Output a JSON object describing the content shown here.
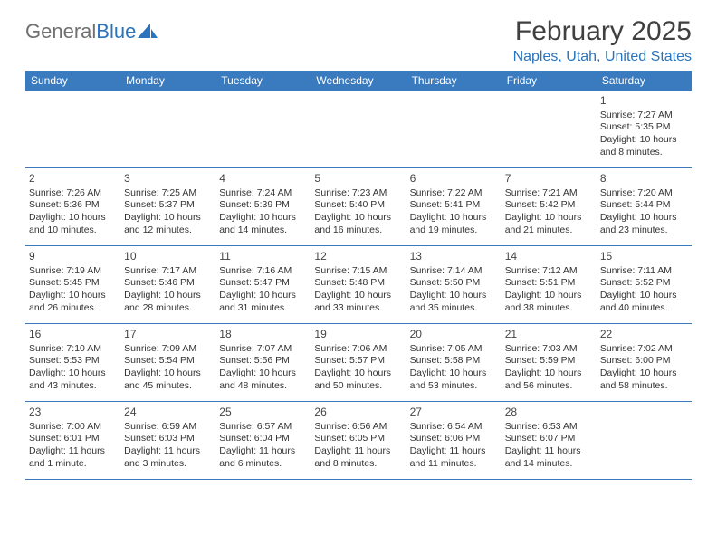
{
  "brand": {
    "part1": "General",
    "part2": "Blue"
  },
  "title": "February 2025",
  "location": "Naples, Utah, United States",
  "colors": {
    "header_bg": "#3a7bbf",
    "header_text": "#ffffff",
    "accent": "#2a74bd",
    "text": "#333333",
    "border": "#3a7bbf",
    "logo_gray": "#707070"
  },
  "weekdays": [
    "Sunday",
    "Monday",
    "Tuesday",
    "Wednesday",
    "Thursday",
    "Friday",
    "Saturday"
  ],
  "first_weekday_index": 6,
  "days": [
    {
      "n": 1,
      "sunrise": "7:27 AM",
      "sunset": "5:35 PM",
      "daylight": "10 hours and 8 minutes."
    },
    {
      "n": 2,
      "sunrise": "7:26 AM",
      "sunset": "5:36 PM",
      "daylight": "10 hours and 10 minutes."
    },
    {
      "n": 3,
      "sunrise": "7:25 AM",
      "sunset": "5:37 PM",
      "daylight": "10 hours and 12 minutes."
    },
    {
      "n": 4,
      "sunrise": "7:24 AM",
      "sunset": "5:39 PM",
      "daylight": "10 hours and 14 minutes."
    },
    {
      "n": 5,
      "sunrise": "7:23 AM",
      "sunset": "5:40 PM",
      "daylight": "10 hours and 16 minutes."
    },
    {
      "n": 6,
      "sunrise": "7:22 AM",
      "sunset": "5:41 PM",
      "daylight": "10 hours and 19 minutes."
    },
    {
      "n": 7,
      "sunrise": "7:21 AM",
      "sunset": "5:42 PM",
      "daylight": "10 hours and 21 minutes."
    },
    {
      "n": 8,
      "sunrise": "7:20 AM",
      "sunset": "5:44 PM",
      "daylight": "10 hours and 23 minutes."
    },
    {
      "n": 9,
      "sunrise": "7:19 AM",
      "sunset": "5:45 PM",
      "daylight": "10 hours and 26 minutes."
    },
    {
      "n": 10,
      "sunrise": "7:17 AM",
      "sunset": "5:46 PM",
      "daylight": "10 hours and 28 minutes."
    },
    {
      "n": 11,
      "sunrise": "7:16 AM",
      "sunset": "5:47 PM",
      "daylight": "10 hours and 31 minutes."
    },
    {
      "n": 12,
      "sunrise": "7:15 AM",
      "sunset": "5:48 PM",
      "daylight": "10 hours and 33 minutes."
    },
    {
      "n": 13,
      "sunrise": "7:14 AM",
      "sunset": "5:50 PM",
      "daylight": "10 hours and 35 minutes."
    },
    {
      "n": 14,
      "sunrise": "7:12 AM",
      "sunset": "5:51 PM",
      "daylight": "10 hours and 38 minutes."
    },
    {
      "n": 15,
      "sunrise": "7:11 AM",
      "sunset": "5:52 PM",
      "daylight": "10 hours and 40 minutes."
    },
    {
      "n": 16,
      "sunrise": "7:10 AM",
      "sunset": "5:53 PM",
      "daylight": "10 hours and 43 minutes."
    },
    {
      "n": 17,
      "sunrise": "7:09 AM",
      "sunset": "5:54 PM",
      "daylight": "10 hours and 45 minutes."
    },
    {
      "n": 18,
      "sunrise": "7:07 AM",
      "sunset": "5:56 PM",
      "daylight": "10 hours and 48 minutes."
    },
    {
      "n": 19,
      "sunrise": "7:06 AM",
      "sunset": "5:57 PM",
      "daylight": "10 hours and 50 minutes."
    },
    {
      "n": 20,
      "sunrise": "7:05 AM",
      "sunset": "5:58 PM",
      "daylight": "10 hours and 53 minutes."
    },
    {
      "n": 21,
      "sunrise": "7:03 AM",
      "sunset": "5:59 PM",
      "daylight": "10 hours and 56 minutes."
    },
    {
      "n": 22,
      "sunrise": "7:02 AM",
      "sunset": "6:00 PM",
      "daylight": "10 hours and 58 minutes."
    },
    {
      "n": 23,
      "sunrise": "7:00 AM",
      "sunset": "6:01 PM",
      "daylight": "11 hours and 1 minute."
    },
    {
      "n": 24,
      "sunrise": "6:59 AM",
      "sunset": "6:03 PM",
      "daylight": "11 hours and 3 minutes."
    },
    {
      "n": 25,
      "sunrise": "6:57 AM",
      "sunset": "6:04 PM",
      "daylight": "11 hours and 6 minutes."
    },
    {
      "n": 26,
      "sunrise": "6:56 AM",
      "sunset": "6:05 PM",
      "daylight": "11 hours and 8 minutes."
    },
    {
      "n": 27,
      "sunrise": "6:54 AM",
      "sunset": "6:06 PM",
      "daylight": "11 hours and 11 minutes."
    },
    {
      "n": 28,
      "sunrise": "6:53 AM",
      "sunset": "6:07 PM",
      "daylight": "11 hours and 14 minutes."
    }
  ],
  "labels": {
    "sunrise": "Sunrise:",
    "sunset": "Sunset:",
    "daylight": "Daylight:"
  }
}
